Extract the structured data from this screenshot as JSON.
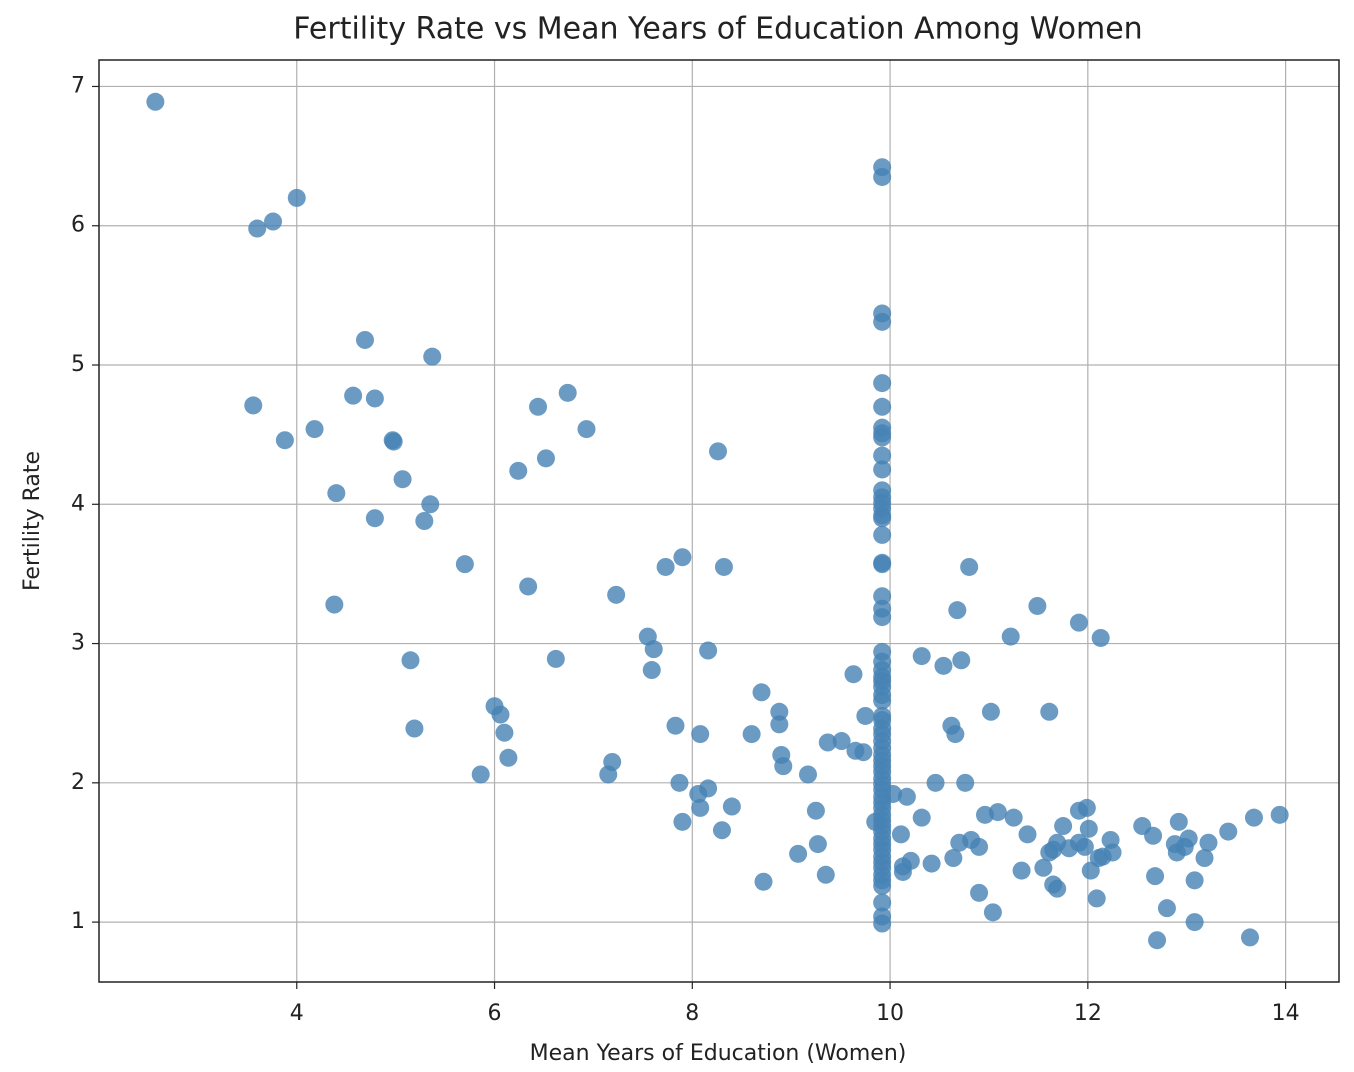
{
  "chart_data": {
    "type": "scatter",
    "title": "Fertility Rate vs Mean Years of Education Among Women",
    "x_label": "Mean Years of Education (Women)",
    "y_label": "Fertility Rate",
    "color": "#4682b4",
    "grid": true,
    "xlim": [
      2.0,
      14.54
    ],
    "ylim": [
      0.57,
      7.19
    ],
    "xticks": [
      4,
      6,
      8,
      10,
      12,
      14
    ],
    "yticks": [
      1,
      2,
      3,
      4,
      5,
      6,
      7
    ],
    "x": [
      2.57,
      3.6,
      3.76,
      4.0,
      4.69,
      5.37,
      3.56,
      4.57,
      4.79,
      3.88,
      4.18,
      4.97,
      4.98,
      4.4,
      4.79,
      5.07,
      5.35,
      5.29,
      5.7,
      4.38,
      5.15,
      5.19,
      6.44,
      6.74,
      6.93,
      6.52,
      6.24,
      6.34,
      6.62,
      6.0,
      6.06,
      6.1,
      6.14,
      5.86,
      7.15,
      7.19,
      7.23,
      8.26,
      7.9,
      7.73,
      8.32,
      7.55,
      7.61,
      7.59,
      8.16,
      7.83,
      8.08,
      7.87,
      8.16,
      8.06,
      8.08,
      7.9,
      8.4,
      8.3,
      8.7,
      8.88,
      8.88,
      8.6,
      8.9,
      8.92,
      9.17,
      9.37,
      9.51,
      9.65,
      9.73,
      9.63,
      9.75,
      9.25,
      9.27,
      9.07,
      9.35,
      8.72,
      9.92,
      9.92,
      9.92,
      9.92,
      9.92,
      9.92,
      9.92,
      9.92,
      9.92,
      9.92,
      9.92,
      9.92,
      9.92,
      9.92,
      9.92,
      9.92,
      9.92,
      9.92,
      9.92,
      9.92,
      9.92,
      9.92,
      9.92,
      9.92,
      9.92,
      9.92,
      9.92,
      9.92,
      9.92,
      9.92,
      9.92,
      9.92,
      9.92,
      9.92,
      9.92,
      9.92,
      9.92,
      9.92,
      9.92,
      9.92,
      9.92,
      9.92,
      9.92,
      9.92,
      9.92,
      9.92,
      9.92,
      9.92,
      9.92,
      9.92,
      9.92,
      9.92,
      9.92,
      9.92,
      9.92,
      9.92,
      9.92,
      9.92,
      9.92,
      9.92,
      9.92,
      9.92,
      9.92,
      9.85,
      10.8,
      10.68,
      11.22,
      11.49,
      11.91,
      12.13,
      10.32,
      10.54,
      10.72,
      11.02,
      11.61,
      10.62,
      10.66,
      10.46,
      10.76,
      10.03,
      10.17,
      10.32,
      10.11,
      10.21,
      10.13,
      10.13,
      10.42,
      10.64,
      10.7,
      10.82,
      10.9,
      10.9,
      11.04,
      10.96,
      11.09,
      11.25,
      11.39,
      11.33,
      11.55,
      11.61,
      11.65,
      11.69,
      11.75,
      11.81,
      11.65,
      11.69,
      11.91,
      11.99,
      12.01,
      11.91,
      11.97,
      12.03,
      12.09,
      12.11,
      12.15,
      12.23,
      12.25,
      12.55,
      12.66,
      12.68,
      12.7,
      12.8,
      12.92,
      12.88,
      12.9,
      12.98,
      13.02,
      13.08,
      13.08,
      13.18,
      13.22,
      13.42,
      13.68,
      13.64,
      13.94
    ],
    "y": [
      6.89,
      5.98,
      6.03,
      6.2,
      5.18,
      5.06,
      4.71,
      4.78,
      4.76,
      4.46,
      4.54,
      4.46,
      4.45,
      4.08,
      3.9,
      4.18,
      4.0,
      3.88,
      3.57,
      3.28,
      2.88,
      2.39,
      4.7,
      4.8,
      4.54,
      4.33,
      4.24,
      3.41,
      2.89,
      2.55,
      2.49,
      2.36,
      2.18,
      2.06,
      2.06,
      2.15,
      3.35,
      4.38,
      3.62,
      3.55,
      3.55,
      3.05,
      2.96,
      2.81,
      2.95,
      2.41,
      2.35,
      2.0,
      1.96,
      1.92,
      1.82,
      1.72,
      1.83,
      1.66,
      2.65,
      2.51,
      2.42,
      2.35,
      2.2,
      2.12,
      2.06,
      2.29,
      2.3,
      2.23,
      2.22,
      2.78,
      2.48,
      1.8,
      1.56,
      1.49,
      1.34,
      1.29,
      6.42,
      6.35,
      5.37,
      5.31,
      4.87,
      4.7,
      4.55,
      4.51,
      4.48,
      4.35,
      4.25,
      4.1,
      4.05,
      4.01,
      3.97,
      3.92,
      3.9,
      3.78,
      3.58,
      3.57,
      3.34,
      3.25,
      3.19,
      2.94,
      2.87,
      2.81,
      2.76,
      2.73,
      2.69,
      2.63,
      2.59,
      2.48,
      2.45,
      2.39,
      2.35,
      2.3,
      2.25,
      2.2,
      2.16,
      2.12,
      2.08,
      2.03,
      1.99,
      1.95,
      1.9,
      1.86,
      1.82,
      1.77,
      1.73,
      1.69,
      1.65,
      1.6,
      1.56,
      1.52,
      1.47,
      1.43,
      1.39,
      1.34,
      1.3,
      1.26,
      1.14,
      1.04,
      0.99,
      1.72,
      3.55,
      3.24,
      3.05,
      3.27,
      3.15,
      3.04,
      2.91,
      2.84,
      2.88,
      2.51,
      2.51,
      2.41,
      2.35,
      2.0,
      2.0,
      1.92,
      1.9,
      1.75,
      1.63,
      1.44,
      1.4,
      1.36,
      1.42,
      1.46,
      1.57,
      1.59,
      1.54,
      1.21,
      1.07,
      1.77,
      1.79,
      1.75,
      1.63,
      1.37,
      1.39,
      1.5,
      1.52,
      1.57,
      1.69,
      1.53,
      1.27,
      1.24,
      1.8,
      1.82,
      1.67,
      1.57,
      1.54,
      1.37,
      1.17,
      1.46,
      1.47,
      1.59,
      1.5,
      1.69,
      1.62,
      1.33,
      0.87,
      1.1,
      1.72,
      1.56,
      1.5,
      1.54,
      1.6,
      1.3,
      1.0,
      1.46,
      1.57,
      1.65,
      1.75,
      0.89,
      1.77
    ]
  }
}
